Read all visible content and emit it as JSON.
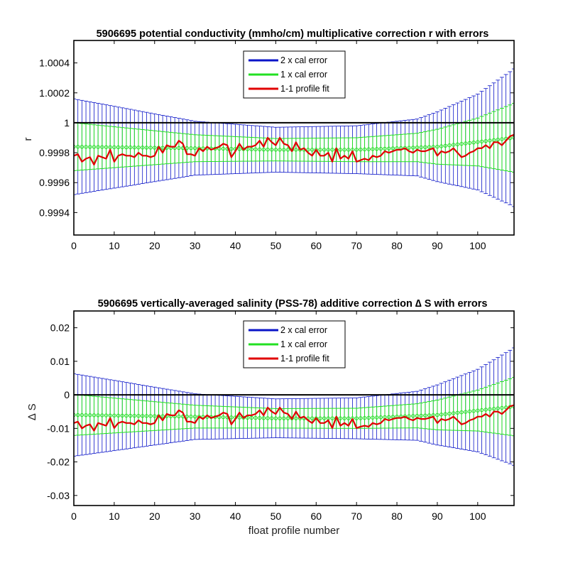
{
  "chart_data": [
    {
      "type": "line",
      "title": "5906695 potential conductivity (mmho/cm) multiplicative correction r with errors",
      "xlabel": "",
      "ylabel": "r",
      "xlim": [
        0,
        109
      ],
      "ylim": [
        0.99925,
        1.00055
      ],
      "xticks": [
        0,
        10,
        20,
        30,
        40,
        50,
        60,
        70,
        80,
        90,
        100
      ],
      "yticks": [
        0.9994,
        0.9996,
        0.9998,
        1,
        1.0002,
        1.0004
      ],
      "ytick_labels": [
        "0.9994",
        "0.9996",
        "0.9998",
        "1",
        "1.0002",
        "1.0004"
      ],
      "reference_line": 1,
      "legend": {
        "position": "top-center",
        "entries": [
          "2 x cal error",
          "1 x cal error",
          "1-1 profile fit"
        ]
      },
      "series": [
        {
          "name": "2 x cal error",
          "color": "#0a14c8",
          "style": "errorbar",
          "center_points": [
            [
              0,
              0.99984
            ],
            [
              30,
              0.99983
            ],
            [
              50,
              0.99982
            ],
            [
              70,
              0.99982
            ],
            [
              90,
              0.99984
            ],
            [
              109,
              0.9999
            ]
          ],
          "halfwidth_points": [
            [
              0,
              0.00032
            ],
            [
              30,
              0.00018
            ],
            [
              50,
              0.00015
            ],
            [
              70,
              0.00016
            ],
            [
              85,
              0.00019
            ],
            [
              100,
              0.00032
            ],
            [
              109,
              0.00046
            ]
          ]
        },
        {
          "name": "1 x cal error",
          "color": "#22e022",
          "style": "errorbar",
          "center_points": [
            [
              0,
              0.99984
            ],
            [
              30,
              0.99983
            ],
            [
              50,
              0.99982
            ],
            [
              70,
              0.99982
            ],
            [
              90,
              0.99984
            ],
            [
              109,
              0.9999
            ]
          ],
          "halfwidth_points": [
            [
              0,
              0.00016
            ],
            [
              30,
              9e-05
            ],
            [
              50,
              7.5e-05
            ],
            [
              70,
              8e-05
            ],
            [
              85,
              9.5e-05
            ],
            [
              100,
              0.00016
            ],
            [
              109,
              0.00023
            ]
          ]
        },
        {
          "name": "1-1 profile fit",
          "color": "#e00000",
          "style": "line",
          "values": [
            0.99978,
            0.99979,
            0.99974,
            0.99976,
            0.99977,
            0.99972,
            0.99978,
            0.99977,
            0.99976,
            0.99982,
            0.99974,
            0.99978,
            0.99979,
            0.99978,
            0.99978,
            0.99977,
            0.9998,
            0.99978,
            0.99978,
            0.99977,
            0.99978,
            0.99984,
            0.9998,
            0.99985,
            0.99984,
            0.99984,
            0.99988,
            0.99986,
            0.99979,
            0.99979,
            0.99978,
            0.99983,
            0.99981,
            0.99984,
            0.99982,
            0.99983,
            0.99984,
            0.99986,
            0.99985,
            0.99977,
            0.99981,
            0.99986,
            0.99982,
            0.99984,
            0.99984,
            0.99985,
            0.99988,
            0.99984,
            0.9999,
            0.99987,
            0.99985,
            0.9999,
            0.99986,
            0.99985,
            0.99981,
            0.99987,
            0.99982,
            0.99983,
            0.9998,
            0.99978,
            0.99982,
            0.99978,
            0.99978,
            0.9998,
            0.99974,
            0.99983,
            0.99976,
            0.99978,
            0.99976,
            0.99981,
            0.99974,
            0.99975,
            0.99976,
            0.99975,
            0.99978,
            0.99977,
            0.99978,
            0.99981,
            0.9998,
            0.99981,
            0.99982,
            0.99982,
            0.99983,
            0.99981,
            0.9998,
            0.99982,
            0.99981,
            0.99981,
            0.99982,
            0.99983,
            0.99978,
            0.99981,
            0.9998,
            0.99981,
            0.99983,
            0.9998,
            0.99977,
            0.99978,
            0.9998,
            0.99981,
            0.99983,
            0.99983,
            0.99985,
            0.99983,
            0.99987,
            0.99987,
            0.99985,
            0.99988,
            0.99991,
            0.99992
          ]
        }
      ]
    },
    {
      "type": "line",
      "title": "5906695 vertically-averaged salinity (PSS-78) additive correction ∆ S with errors",
      "xlabel": "float profile number",
      "ylabel": "∆ S",
      "xlim": [
        0,
        109
      ],
      "ylim": [
        -0.033,
        0.025
      ],
      "xticks": [
        0,
        10,
        20,
        30,
        40,
        50,
        60,
        70,
        80,
        90,
        100
      ],
      "yticks": [
        -0.03,
        -0.02,
        -0.01,
        0,
        0.01,
        0.02
      ],
      "ytick_labels": [
        "-0.03",
        "-0.02",
        "-0.01",
        "0",
        "0.01",
        "0.02"
      ],
      "reference_line": 0,
      "legend": {
        "position": "top-center",
        "entries": [
          "2 x cal error",
          "1 x cal error",
          "1-1 profile fit"
        ]
      },
      "series": [
        {
          "name": "2 x cal error",
          "color": "#0a14c8",
          "style": "errorbar",
          "center_points": [
            [
              0,
              -0.006
            ],
            [
              30,
              -0.0065
            ],
            [
              50,
              -0.007
            ],
            [
              70,
              -0.007
            ],
            [
              90,
              -0.006
            ],
            [
              109,
              -0.0035
            ]
          ],
          "halfwidth_points": [
            [
              0,
              0.0123
            ],
            [
              30,
              0.0068
            ],
            [
              50,
              0.0058
            ],
            [
              70,
              0.0061
            ],
            [
              85,
              0.0073
            ],
            [
              100,
              0.0123
            ],
            [
              109,
              0.0175
            ]
          ]
        },
        {
          "name": "1 x cal error",
          "color": "#22e022",
          "style": "errorbar",
          "center_points": [
            [
              0,
              -0.006
            ],
            [
              30,
              -0.0065
            ],
            [
              50,
              -0.007
            ],
            [
              70,
              -0.007
            ],
            [
              90,
              -0.006
            ],
            [
              109,
              -0.0035
            ]
          ],
          "halfwidth_points": [
            [
              0,
              0.0061
            ],
            [
              30,
              0.0034
            ],
            [
              50,
              0.0029
            ],
            [
              70,
              0.003
            ],
            [
              85,
              0.0036
            ],
            [
              100,
              0.0061
            ],
            [
              109,
              0.0087
            ]
          ]
        },
        {
          "name": "1-1 profile fit",
          "color": "#e00000",
          "style": "line",
          "values": [
            -0.0084,
            -0.008,
            -0.01,
            -0.0092,
            -0.0088,
            -0.0107,
            -0.0084,
            -0.0088,
            -0.0092,
            -0.0069,
            -0.0099,
            -0.0084,
            -0.008,
            -0.0084,
            -0.0084,
            -0.0088,
            -0.0076,
            -0.0084,
            -0.0084,
            -0.0088,
            -0.0084,
            -0.0061,
            -0.0076,
            -0.0057,
            -0.0061,
            -0.0061,
            -0.0046,
            -0.0053,
            -0.008,
            -0.008,
            -0.0084,
            -0.0065,
            -0.0072,
            -0.0061,
            -0.0069,
            -0.0065,
            -0.0061,
            -0.0053,
            -0.0057,
            -0.0088,
            -0.0072,
            -0.0053,
            -0.0069,
            -0.0061,
            -0.0061,
            -0.0057,
            -0.0046,
            -0.0061,
            -0.0038,
            -0.005,
            -0.0057,
            -0.0038,
            -0.0053,
            -0.0057,
            -0.0072,
            -0.005,
            -0.0069,
            -0.0065,
            -0.0076,
            -0.0084,
            -0.0069,
            -0.0084,
            -0.0084,
            -0.0076,
            -0.0099,
            -0.0065,
            -0.0092,
            -0.0084,
            -0.0092,
            -0.0072,
            -0.0099,
            -0.0095,
            -0.0092,
            -0.0095,
            -0.0084,
            -0.0088,
            -0.0084,
            -0.0072,
            -0.0076,
            -0.0072,
            -0.0069,
            -0.0069,
            -0.0065,
            -0.0072,
            -0.0076,
            -0.0069,
            -0.0072,
            -0.0072,
            -0.0069,
            -0.0065,
            -0.0084,
            -0.0072,
            -0.0076,
            -0.0072,
            -0.0065,
            -0.0076,
            -0.0088,
            -0.0084,
            -0.0076,
            -0.0072,
            -0.0065,
            -0.0065,
            -0.0057,
            -0.0065,
            -0.005,
            -0.005,
            -0.0057,
            -0.0046,
            -0.0034,
            -0.0031
          ]
        }
      ]
    }
  ]
}
